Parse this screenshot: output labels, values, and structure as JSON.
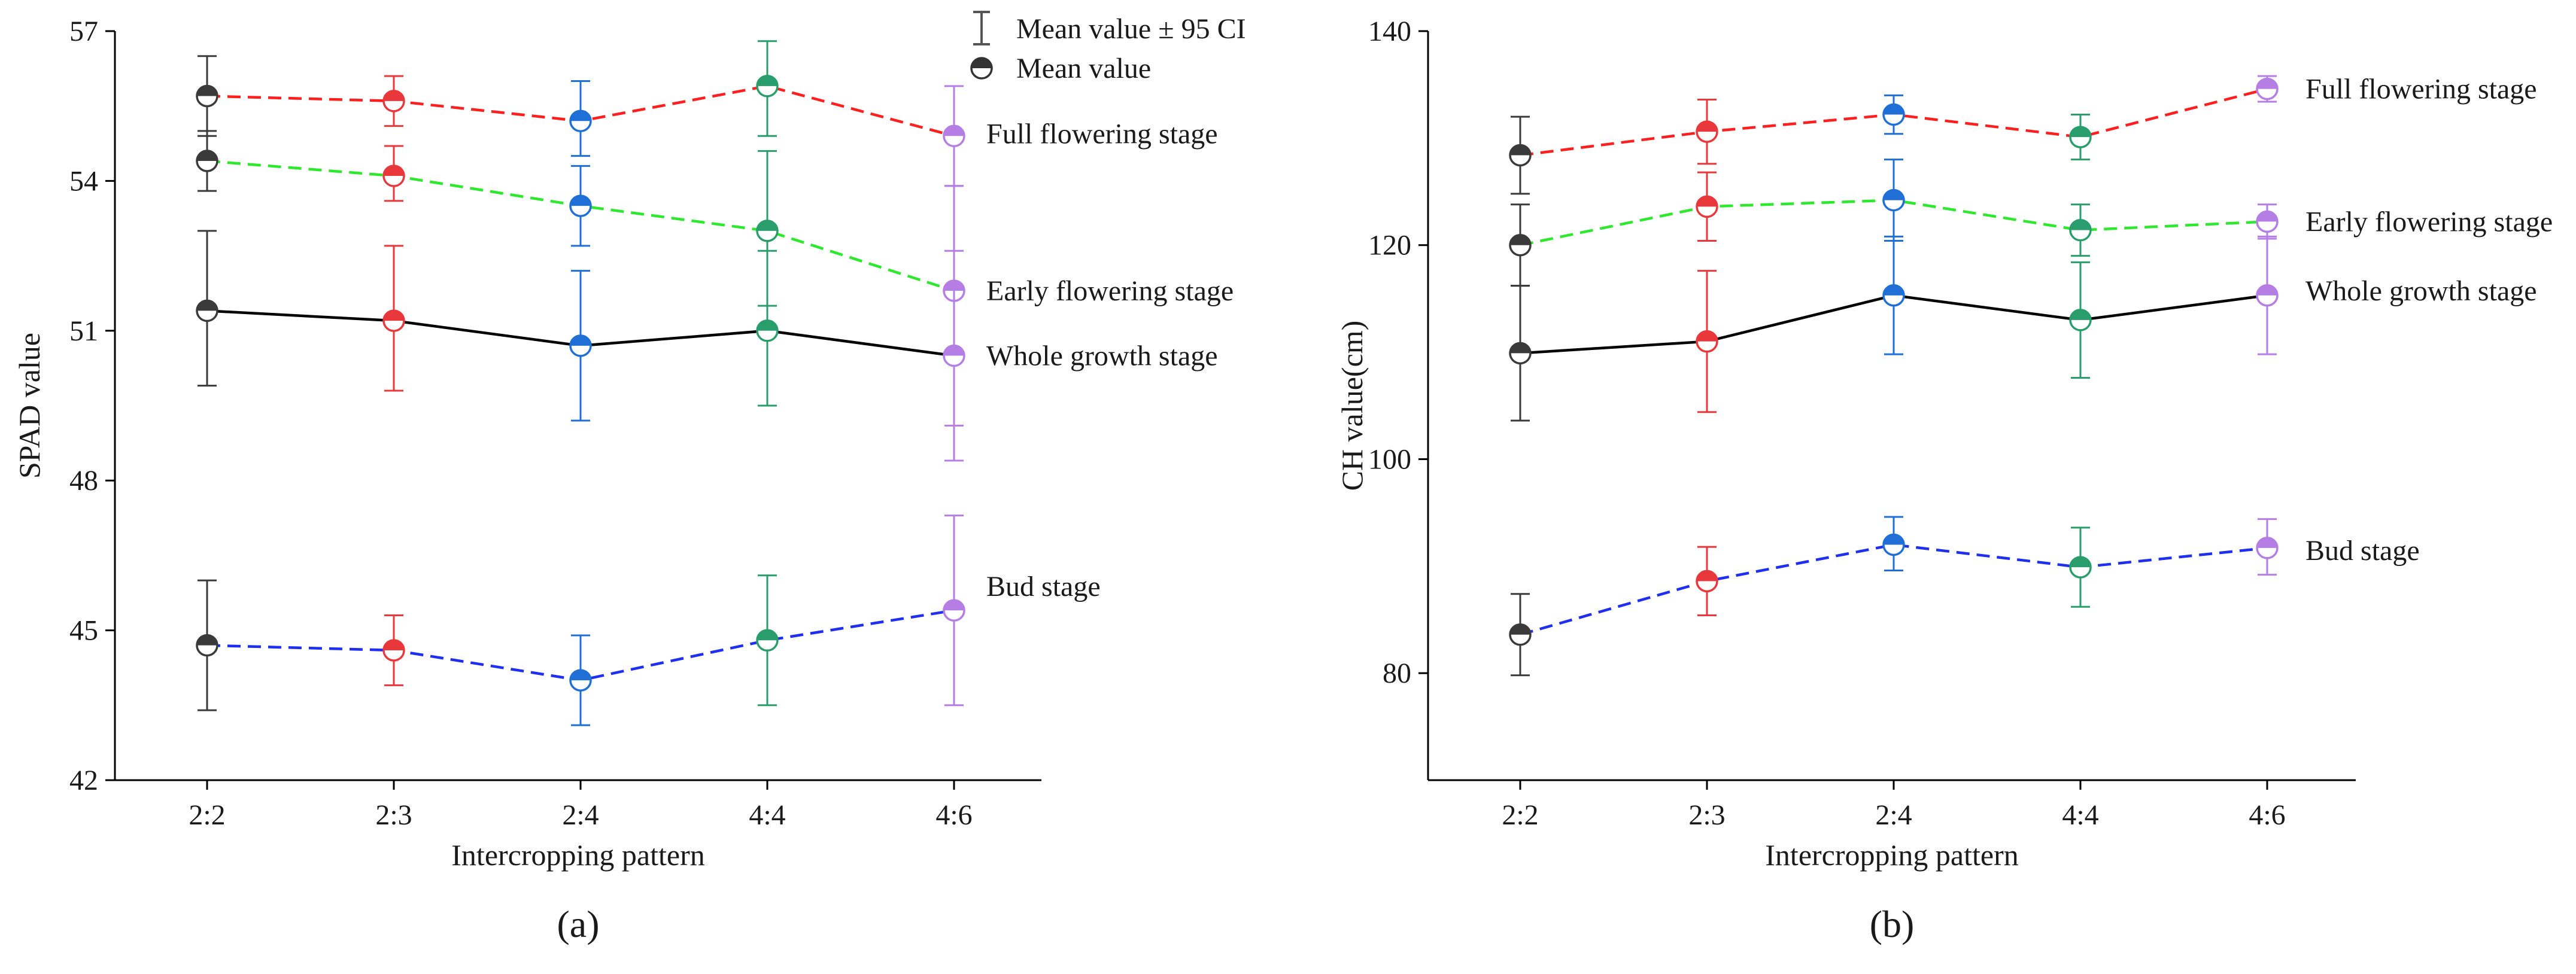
{
  "figure": {
    "legend": {
      "ci_label": "Mean value ± 95 CI",
      "mean_label": "Mean value"
    },
    "group_colors": {
      "2:2": "#3a3a3a",
      "2:3": "#e8383b",
      "2:4": "#1f6fd6",
      "4:4": "#2a9d6c",
      "4:6": "#b57ee5"
    },
    "stage_styles": {
      "Full flowering stage": {
        "color": "#ff1f1f",
        "dash": true
      },
      "Early flowering stage": {
        "color": "#2ee82e",
        "dash": true
      },
      "Whole growth stage": {
        "color": "#000000",
        "dash": false
      },
      "Bud stage": {
        "color": "#1f2ff0",
        "dash": true
      }
    }
  },
  "chart_data": [
    {
      "type": "line",
      "panel_label": "(a)",
      "panel_letter": "a",
      "xlabel": "Intercropping pattern",
      "ylabel": "SPAD value",
      "categories": [
        "2:2",
        "2:3",
        "2:4",
        "4:4",
        "4:6"
      ],
      "ylim": [
        42,
        57
      ],
      "yticks": [
        42,
        45,
        48,
        51,
        54,
        57
      ],
      "series": [
        {
          "name": "Full flowering stage",
          "values": [
            55.7,
            55.6,
            55.2,
            55.9,
            54.9
          ],
          "ci_low": [
            54.9,
            55.1,
            54.5,
            54.9,
            53.9
          ],
          "ci_high": [
            56.5,
            56.1,
            56.0,
            56.8,
            55.9
          ]
        },
        {
          "name": "Early flowering stage",
          "values": [
            54.4,
            54.1,
            53.5,
            53.0,
            51.8
          ],
          "ci_low": [
            53.8,
            53.6,
            52.7,
            51.5,
            49.1
          ],
          "ci_high": [
            55.0,
            54.7,
            54.3,
            54.6,
            53.9
          ]
        },
        {
          "name": "Whole growth stage",
          "values": [
            51.4,
            51.2,
            50.7,
            51.0,
            50.5
          ],
          "ci_low": [
            49.9,
            49.8,
            49.2,
            49.5,
            48.4
          ],
          "ci_high": [
            53.0,
            52.7,
            52.2,
            52.6,
            52.6
          ]
        },
        {
          "name": "Bud stage",
          "values": [
            44.7,
            44.6,
            44.0,
            44.8,
            45.4
          ],
          "ci_low": [
            43.4,
            43.9,
            43.1,
            43.5,
            43.5
          ],
          "ci_high": [
            46.0,
            45.3,
            44.9,
            46.1,
            47.3
          ]
        }
      ]
    },
    {
      "type": "line",
      "panel_label": "(b)",
      "panel_letter": "b",
      "xlabel": "Intercropping pattern",
      "ylabel": "CH value(cm)",
      "categories": [
        "2:2",
        "2:3",
        "2:4",
        "4:4",
        "4:6"
      ],
      "ylim": [
        70,
        140
      ],
      "yticks": [
        80,
        100,
        120,
        140
      ],
      "series": [
        {
          "name": "Full flowering stage",
          "values": [
            128.4,
            130.6,
            132.2,
            130.1,
            134.6
          ],
          "ci_low": [
            124.8,
            127.6,
            130.4,
            128.0,
            133.4
          ],
          "ci_high": [
            132.0,
            133.6,
            134.0,
            132.2,
            135.8
          ]
        },
        {
          "name": "Early flowering stage",
          "values": [
            120.0,
            123.6,
            124.2,
            121.4,
            122.2
          ],
          "ci_low": [
            116.2,
            120.4,
            120.4,
            119.0,
            120.6
          ],
          "ci_high": [
            123.8,
            126.8,
            128.0,
            123.8,
            123.8
          ]
        },
        {
          "name": "Whole growth stage",
          "values": [
            109.9,
            111.0,
            115.3,
            113.0,
            115.3
          ],
          "ci_low": [
            103.6,
            104.4,
            109.8,
            107.6,
            109.8
          ],
          "ci_high": [
            116.2,
            117.6,
            120.8,
            118.4,
            120.8
          ]
        },
        {
          "name": "Bud stage",
          "values": [
            83.6,
            88.6,
            92.0,
            89.9,
            91.7
          ],
          "ci_low": [
            79.8,
            85.4,
            89.6,
            86.2,
            89.2
          ],
          "ci_high": [
            87.4,
            91.8,
            94.6,
            93.6,
            94.4
          ]
        }
      ]
    }
  ]
}
